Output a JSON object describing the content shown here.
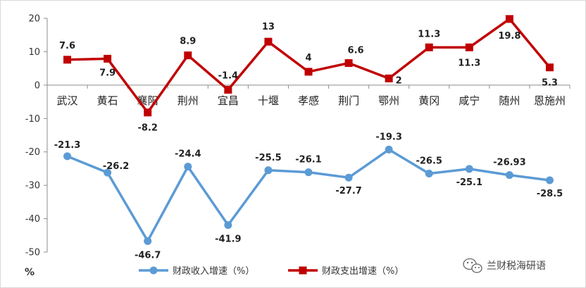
{
  "chart_data": {
    "type": "line",
    "title": "",
    "xlabel": "",
    "ylabel": "%",
    "ylim": [
      -50,
      20
    ],
    "y_ticks": [
      20,
      10,
      0,
      -10,
      -20,
      -30,
      -40,
      -50
    ],
    "grid": false,
    "legend_position": "bottom",
    "categories": [
      "武汉",
      "黄石",
      "襄阳",
      "荆州",
      "宜昌",
      "十堰",
      "孝感",
      "荆门",
      "鄂州",
      "黄冈",
      "咸宁",
      "随州",
      "恩施州"
    ],
    "series": [
      {
        "name": "财政收入增速（%）",
        "color": "#5b9bd5",
        "marker": "circle",
        "values": [
          -21.3,
          -26.2,
          -46.7,
          -24.4,
          -41.9,
          -25.5,
          -26.1,
          -27.7,
          -19.3,
          -26.5,
          -25.1,
          -26.93,
          -28.5
        ],
        "labels": [
          "-21.3",
          "-26.2",
          "-46.7",
          "-24.4",
          "-41.9",
          "-25.5",
          "-26.1",
          "-27.7",
          "-19.3",
          "-26.5",
          "-25.1",
          "-26.93",
          "-28.5"
        ]
      },
      {
        "name": "财政支出增速（%）",
        "color": "#c00000",
        "marker": "square",
        "values": [
          7.6,
          7.9,
          -8.2,
          8.9,
          -1.4,
          13,
          4,
          6.6,
          2,
          11.3,
          11.3,
          19.8,
          5.3
        ],
        "labels": [
          "7.6",
          "7.9",
          "-8.2",
          "8.9",
          "-1.4",
          "13",
          "4",
          "6.6",
          "2",
          "11.3",
          "11.3",
          "19.8",
          "5.3"
        ]
      }
    ]
  },
  "watermark": {
    "text": "兰财税海研语",
    "icon": "wechat-icon"
  }
}
